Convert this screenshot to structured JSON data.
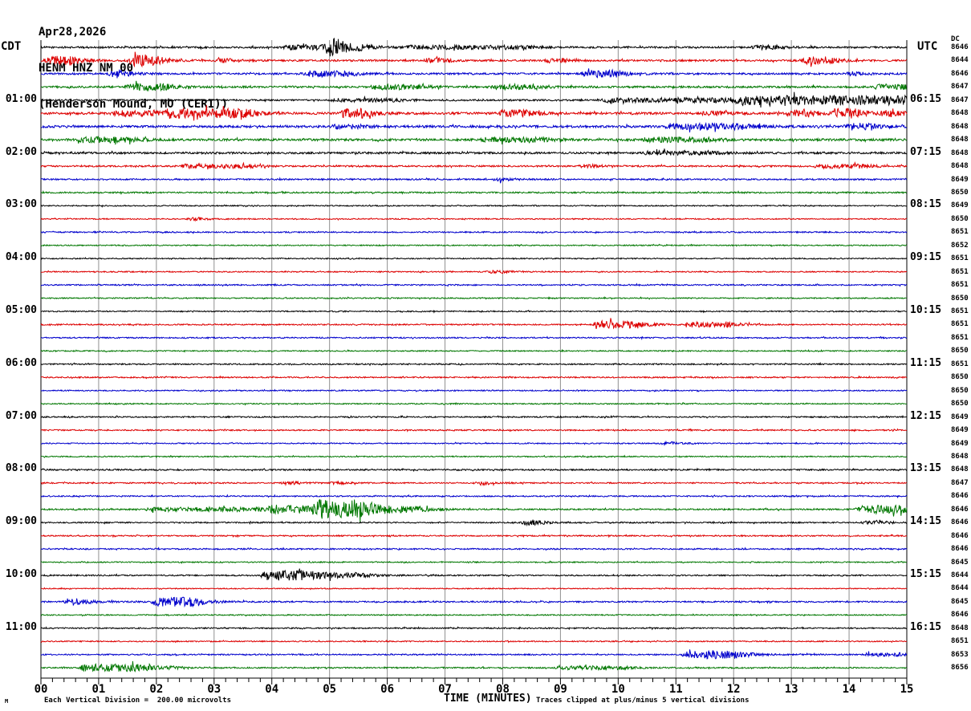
{
  "header": {
    "date": "Apr28,2026",
    "station": "HENM HNZ NM 00",
    "location": "(Henderson Mound, MO (CERI))"
  },
  "axes": {
    "left_label": "CDT",
    "right_label": "UTC",
    "right_top": "DC",
    "xlabel": "TIME (MINUTES)",
    "footnote_left": "Each Vertical Division =  200.00 microvolts",
    "footnote_right": "Traces clipped at plus/minus 5 vertical divisions",
    "watermark": "M"
  },
  "chart_data": {
    "type": "line",
    "subtype": "helicorder-seismogram",
    "title": "HENM HNZ NM 00 (Henderson Mound, MO (CERI)) Apr28,2026",
    "xlabel": "TIME (MINUTES)",
    "xlim": [
      0,
      15
    ],
    "x_ticks": [
      "00",
      "01",
      "02",
      "03",
      "04",
      "05",
      "06",
      "07",
      "08",
      "09",
      "10",
      "11",
      "12",
      "13",
      "14",
      "15"
    ],
    "grid": "vertical-every-minute",
    "legend_position": "none",
    "colors": {
      "black": "#000000",
      "red": "#dd0000",
      "blue": "#0000cc",
      "green": "#007700",
      "grid": "#909090"
    },
    "color_cycle": [
      "black",
      "red",
      "blue",
      "green"
    ],
    "rows": [
      {
        "c": "black",
        "v": "8646",
        "cdt": "",
        "utc": "",
        "n": 1.1,
        "ev": [
          [
            4.9,
            5.1,
            9
          ],
          [
            4.2,
            5.6,
            2.5
          ],
          [
            6.3,
            8.4,
            1.8
          ],
          [
            12.3,
            12.7,
            2.2
          ]
        ]
      },
      {
        "c": "red",
        "v": "8644",
        "cdt": "",
        "utc": "",
        "n": 1.1,
        "ev": [
          [
            0.05,
            0.55,
            5
          ],
          [
            1.5,
            1.95,
            6.5
          ],
          [
            3.0,
            3.2,
            2
          ],
          [
            6.6,
            6.9,
            2.2
          ],
          [
            8.7,
            9.0,
            2
          ],
          [
            13.15,
            13.6,
            4
          ]
        ]
      },
      {
        "c": "blue",
        "v": "8646",
        "cdt": "",
        "utc": "",
        "n": 1.1,
        "ev": [
          [
            1.15,
            1.35,
            4.5
          ],
          [
            4.5,
            5.3,
            3
          ],
          [
            9.35,
            9.95,
            3.8
          ],
          [
            13.9,
            14.1,
            2
          ]
        ]
      },
      {
        "c": "green",
        "v": "8647",
        "cdt": "",
        "utc": "",
        "n": 1.2,
        "ev": [
          [
            1.45,
            2.15,
            3.5
          ],
          [
            5.7,
            6.5,
            2.5
          ],
          [
            7.8,
            8.6,
            2.5
          ],
          [
            14.4,
            15,
            2.5
          ]
        ]
      },
      {
        "c": "black",
        "v": "8647",
        "cdt": "01:00",
        "utc": "06:15",
        "n": 1.0,
        "ev": [
          [
            5.0,
            6.2,
            1.5
          ],
          [
            9.7,
            11.9,
            2.2
          ],
          [
            12.0,
            15,
            5
          ]
        ]
      },
      {
        "c": "red",
        "v": "8648",
        "cdt": "",
        "utc": "",
        "n": 1.4,
        "ev": [
          [
            1.2,
            2.0,
            3
          ],
          [
            2.1,
            3.6,
            4.5
          ],
          [
            5.15,
            5.6,
            5
          ],
          [
            7.9,
            8.4,
            3.5
          ],
          [
            11.4,
            11.7,
            2.5
          ],
          [
            12.9,
            13.3,
            4
          ],
          [
            13.7,
            14.1,
            5
          ],
          [
            14.5,
            14.8,
            3
          ]
        ]
      },
      {
        "c": "blue",
        "v": "8648",
        "cdt": "",
        "utc": "",
        "n": 1.4,
        "ev": [
          [
            5.0,
            5.5,
            2
          ],
          [
            10.8,
            12.3,
            3
          ],
          [
            13.9,
            14.4,
            3.5
          ]
        ]
      },
      {
        "c": "green",
        "v": "8648",
        "cdt": "",
        "utc": "",
        "n": 1.4,
        "ev": [
          [
            0.6,
            1.5,
            2.5
          ],
          [
            7.6,
            8.7,
            2
          ],
          [
            10.4,
            11.6,
            2
          ]
        ]
      },
      {
        "c": "black",
        "v": "8648",
        "cdt": "02:00",
        "utc": "07:15",
        "n": 1.2,
        "ev": [
          [
            10.4,
            11.6,
            1.8
          ]
        ]
      },
      {
        "c": "red",
        "v": "8648",
        "cdt": "",
        "utc": "",
        "n": 1.0,
        "ev": [
          [
            2.4,
            3.6,
            2
          ],
          [
            9.3,
            9.6,
            1.5
          ],
          [
            13.4,
            14.3,
            2
          ]
        ]
      },
      {
        "c": "blue",
        "v": "8649",
        "cdt": "",
        "utc": "",
        "n": 0.9,
        "ev": [
          [
            7.8,
            8.0,
            1.8
          ]
        ]
      },
      {
        "c": "green",
        "v": "8650",
        "cdt": "",
        "utc": "",
        "n": 0.9,
        "ev": []
      },
      {
        "c": "black",
        "v": "8649",
        "cdt": "03:00",
        "utc": "08:15",
        "n": 0.7,
        "ev": []
      },
      {
        "c": "red",
        "v": "8650",
        "cdt": "",
        "utc": "",
        "n": 0.7,
        "ev": [
          [
            2.5,
            2.7,
            1.5
          ]
        ]
      },
      {
        "c": "blue",
        "v": "8651",
        "cdt": "",
        "utc": "",
        "n": 0.8,
        "ev": []
      },
      {
        "c": "green",
        "v": "8652",
        "cdt": "",
        "utc": "",
        "n": 0.7,
        "ev": []
      },
      {
        "c": "black",
        "v": "8651",
        "cdt": "04:00",
        "utc": "09:15",
        "n": 0.7,
        "ev": []
      },
      {
        "c": "red",
        "v": "8651",
        "cdt": "",
        "utc": "",
        "n": 0.7,
        "ev": [
          [
            7.7,
            7.95,
            1.5
          ]
        ]
      },
      {
        "c": "blue",
        "v": "8651",
        "cdt": "",
        "utc": "",
        "n": 0.8,
        "ev": []
      },
      {
        "c": "green",
        "v": "8650",
        "cdt": "",
        "utc": "",
        "n": 0.7,
        "ev": []
      },
      {
        "c": "black",
        "v": "8651",
        "cdt": "05:00",
        "utc": "10:15",
        "n": 0.7,
        "ev": []
      },
      {
        "c": "red",
        "v": "8651",
        "cdt": "",
        "utc": "",
        "n": 0.8,
        "ev": [
          [
            9.55,
            10.35,
            4
          ],
          [
            11.15,
            11.95,
            2.8
          ]
        ]
      },
      {
        "c": "blue",
        "v": "8651",
        "cdt": "",
        "utc": "",
        "n": 0.8,
        "ev": []
      },
      {
        "c": "green",
        "v": "8650",
        "cdt": "",
        "utc": "",
        "n": 0.7,
        "ev": []
      },
      {
        "c": "black",
        "v": "8651",
        "cdt": "06:00",
        "utc": "11:15",
        "n": 0.8,
        "ev": []
      },
      {
        "c": "red",
        "v": "8650",
        "cdt": "",
        "utc": "",
        "n": 0.8,
        "ev": []
      },
      {
        "c": "blue",
        "v": "8650",
        "cdt": "",
        "utc": "",
        "n": 0.7,
        "ev": []
      },
      {
        "c": "green",
        "v": "8650",
        "cdt": "",
        "utc": "",
        "n": 0.7,
        "ev": []
      },
      {
        "c": "black",
        "v": "8649",
        "cdt": "07:00",
        "utc": "12:15",
        "n": 0.8,
        "ev": []
      },
      {
        "c": "red",
        "v": "8649",
        "cdt": "",
        "utc": "",
        "n": 0.8,
        "ev": []
      },
      {
        "c": "blue",
        "v": "8649",
        "cdt": "",
        "utc": "",
        "n": 0.7,
        "ev": [
          [
            10.7,
            10.9,
            1.5
          ]
        ]
      },
      {
        "c": "green",
        "v": "8648",
        "cdt": "",
        "utc": "",
        "n": 0.7,
        "ev": []
      },
      {
        "c": "black",
        "v": "8648",
        "cdt": "08:00",
        "utc": "13:15",
        "n": 0.9,
        "ev": []
      },
      {
        "c": "red",
        "v": "8647",
        "cdt": "",
        "utc": "",
        "n": 0.8,
        "ev": [
          [
            4.15,
            4.3,
            2
          ],
          [
            5.0,
            5.1,
            1.5
          ],
          [
            7.5,
            7.65,
            2
          ]
        ]
      },
      {
        "c": "blue",
        "v": "8646",
        "cdt": "",
        "utc": "",
        "n": 0.8,
        "ev": []
      },
      {
        "c": "green",
        "v": "8646",
        "cdt": "",
        "utc": "",
        "n": 0.9,
        "ev": [
          [
            1.8,
            3.9,
            2
          ],
          [
            3.9,
            4.7,
            4
          ],
          [
            4.7,
            5.6,
            9
          ],
          [
            5.6,
            6.6,
            3
          ],
          [
            14.1,
            14.9,
            4.5
          ]
        ]
      },
      {
        "c": "black",
        "v": "8646",
        "cdt": "09:00",
        "utc": "14:15",
        "n": 0.8,
        "ev": [
          [
            8.3,
            8.6,
            2.5
          ],
          [
            14.2,
            14.6,
            1.5
          ]
        ]
      },
      {
        "c": "red",
        "v": "8646",
        "cdt": "",
        "utc": "",
        "n": 0.8,
        "ev": []
      },
      {
        "c": "blue",
        "v": "8646",
        "cdt": "",
        "utc": "",
        "n": 0.8,
        "ev": []
      },
      {
        "c": "green",
        "v": "8645",
        "cdt": "",
        "utc": "",
        "n": 0.7,
        "ev": []
      },
      {
        "c": "black",
        "v": "8644",
        "cdt": "10:00",
        "utc": "15:15",
        "n": 0.8,
        "ev": [
          [
            3.8,
            4.5,
            5.5
          ],
          [
            4.5,
            5.6,
            2.5
          ]
        ]
      },
      {
        "c": "red",
        "v": "8644",
        "cdt": "",
        "utc": "",
        "n": 0.6,
        "ev": []
      },
      {
        "c": "blue",
        "v": "8645",
        "cdt": "",
        "utc": "",
        "n": 0.9,
        "ev": [
          [
            0.4,
            0.65,
            3.5
          ],
          [
            1.9,
            2.7,
            5
          ]
        ]
      },
      {
        "c": "green",
        "v": "8646",
        "cdt": "",
        "utc": "",
        "n": 0.7,
        "ev": []
      },
      {
        "c": "black",
        "v": "8648",
        "cdt": "11:00",
        "utc": "16:15",
        "n": 0.8,
        "ev": []
      },
      {
        "c": "red",
        "v": "8651",
        "cdt": "",
        "utc": "",
        "n": 0.7,
        "ev": []
      },
      {
        "c": "blue",
        "v": "8653",
        "cdt": "",
        "utc": "",
        "n": 0.8,
        "ev": [
          [
            11.1,
            12.1,
            4.5
          ],
          [
            14.2,
            15,
            1.5
          ]
        ]
      },
      {
        "c": "green",
        "v": "8656",
        "cdt": "",
        "utc": "",
        "n": 0.8,
        "ev": [
          [
            0.65,
            1.6,
            4
          ],
          [
            1.6,
            2.3,
            1.5
          ],
          [
            8.9,
            10.1,
            1.8
          ]
        ]
      }
    ]
  }
}
